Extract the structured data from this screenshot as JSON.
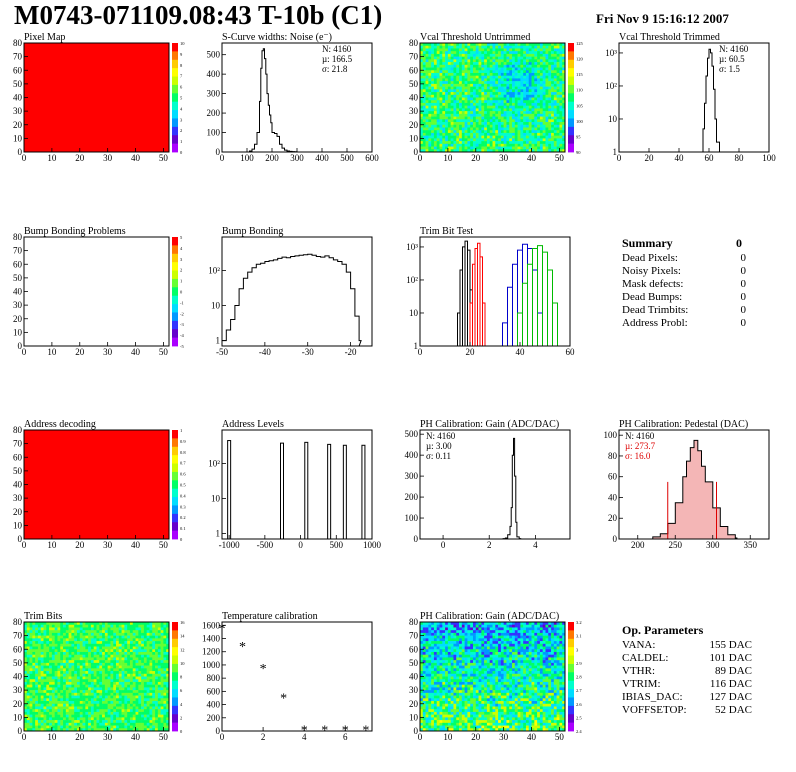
{
  "header": {
    "title": "M0743-071109.08:43 T-10b (C1)",
    "date": "Fri Nov  9 15:16:12 2007"
  },
  "summary": {
    "title": "Summary",
    "total": "0",
    "rows": [
      {
        "label": "Dead Pixels:",
        "value": "0"
      },
      {
        "label": "Noisy Pixels:",
        "value": "0"
      },
      {
        "label": "Mask defects:",
        "value": "0"
      },
      {
        "label": "Dead Bumps:",
        "value": "0"
      },
      {
        "label": "Dead Trimbits:",
        "value": "0"
      },
      {
        "label": "Address Probl:",
        "value": "0"
      }
    ]
  },
  "op_params": {
    "title": "Op. Parameters",
    "rows": [
      {
        "label": "VANA:",
        "value": "155 DAC"
      },
      {
        "label": "CALDEL:",
        "value": "101 DAC"
      },
      {
        "label": "VTHR:",
        "value": "89 DAC"
      },
      {
        "label": "VTRIM:",
        "value": "116 DAC"
      },
      {
        "label": "IBIAS_DAC:",
        "value": "127 DAC"
      },
      {
        "label": "VOFFSETOP:",
        "value": "52 DAC"
      }
    ]
  },
  "chart_data": [
    {
      "id": "pixel-map",
      "type": "heatmap",
      "title": "Pixel Map",
      "fill": "uniform",
      "color": "#ff0000",
      "xlim": [
        0,
        52
      ],
      "ylim": [
        0,
        80
      ],
      "xticks": [
        0,
        10,
        20,
        30,
        40,
        50
      ],
      "yticks": [
        0,
        10,
        20,
        30,
        40,
        50,
        60,
        70,
        80
      ],
      "colorbar": [
        "0",
        "1",
        "2",
        "3",
        "4",
        "5",
        "6",
        "7",
        "8",
        "9",
        "10"
      ]
    },
    {
      "id": "scurve",
      "type": "bar",
      "title": "S-Curve widths: Noise (e⁻)",
      "xlim": [
        0,
        600
      ],
      "ylim": [
        0,
        560
      ],
      "xticks": [
        0,
        100,
        200,
        300,
        400,
        500,
        600
      ],
      "yticks": [
        0,
        100,
        200,
        300,
        400,
        500
      ],
      "x": [
        100,
        110,
        120,
        130,
        140,
        150,
        155,
        160,
        165,
        170,
        175,
        180,
        185,
        190,
        195,
        200,
        210,
        220,
        230,
        240,
        250,
        260,
        270,
        280,
        290,
        300
      ],
      "values": [
        0,
        5,
        15,
        40,
        100,
        260,
        430,
        520,
        530,
        480,
        400,
        300,
        240,
        190,
        150,
        100,
        95,
        80,
        40,
        20,
        10,
        5,
        3,
        2,
        1,
        0
      ],
      "stats": [
        "N: 4160",
        "µ: 166.5",
        "σ: 21.8"
      ]
    },
    {
      "id": "vcal-untrimmed",
      "type": "heatmap",
      "title": "Vcal Threshold Untrimmed",
      "fill": "noise",
      "xlim": [
        0,
        52
      ],
      "ylim": [
        0,
        80
      ],
      "xticks": [
        0,
        10,
        20,
        30,
        40,
        50
      ],
      "yticks": [
        0,
        10,
        20,
        30,
        40,
        50,
        60,
        70,
        80
      ],
      "colorbar": [
        "90",
        "95",
        "100",
        "105",
        "110",
        "115",
        "120",
        "125"
      ]
    },
    {
      "id": "vcal-trimmed",
      "type": "bar",
      "title": "Vcal Threshold Trimmed",
      "log": true,
      "xlim": [
        0,
        100
      ],
      "ylim": [
        1,
        2000
      ],
      "xticks": [
        0,
        20,
        40,
        60,
        80,
        100
      ],
      "yticklabels": [
        "1",
        "10",
        "10²",
        "10³"
      ],
      "x": [
        54,
        56,
        57,
        58,
        59,
        60,
        61,
        62,
        63,
        64,
        65,
        67
      ],
      "values": [
        1,
        5,
        30,
        200,
        700,
        1300,
        1000,
        400,
        80,
        10,
        2,
        1
      ],
      "stats": [
        "N: 4160",
        "µ: 60.5",
        "σ: 1.5"
      ]
    },
    {
      "id": "bump-problems",
      "type": "heatmap",
      "title": "Bump Bonding Problems",
      "fill": "none",
      "xlim": [
        0,
        52
      ],
      "ylim": [
        0,
        80
      ],
      "xticks": [
        0,
        10,
        20,
        30,
        40,
        50
      ],
      "yticks": [
        0,
        10,
        20,
        30,
        40,
        50,
        60,
        70,
        80
      ],
      "colorbar": [
        "-5",
        "-4",
        "-3",
        "-2",
        "-1",
        "0",
        "1",
        "2",
        "3",
        "4",
        "5"
      ]
    },
    {
      "id": "bump-bonding",
      "type": "bar",
      "title": "Bump Bonding",
      "log": true,
      "xlim": [
        -50,
        -15
      ],
      "ylim": [
        0.7,
        900
      ],
      "xticks": [
        -50,
        -40,
        -30,
        -20
      ],
      "yticklabels": [
        "1",
        "10",
        "10²"
      ],
      "x": [
        -50,
        -49,
        -48,
        -47,
        -46,
        -45,
        -44,
        -43,
        -42,
        -41,
        -40,
        -39,
        -38,
        -37,
        -36,
        -35,
        -34,
        -33,
        -32,
        -31,
        -30,
        -29,
        -28,
        -27,
        -26,
        -25,
        -24,
        -23,
        -22,
        -21,
        -20,
        -19,
        -18
      ],
      "values": [
        1,
        2,
        4,
        10,
        30,
        60,
        90,
        120,
        150,
        160,
        180,
        190,
        200,
        220,
        240,
        230,
        250,
        260,
        270,
        280,
        290,
        270,
        250,
        240,
        260,
        230,
        200,
        180,
        150,
        90,
        30,
        5,
        1
      ]
    },
    {
      "id": "trim-bit-test",
      "type": "line",
      "title": "Trim Bit Test",
      "log": true,
      "xlim": [
        0,
        60
      ],
      "ylim": [
        1,
        2000
      ],
      "xticks": [
        0,
        20,
        40,
        60
      ],
      "yticklabels": [
        "1",
        "10",
        "10²",
        "10³"
      ],
      "series": [
        {
          "color": "#000000",
          "x": [
            14,
            15,
            16,
            17,
            18,
            19,
            20,
            21
          ],
          "values": [
            1,
            10,
            200,
            1000,
            1500,
            800,
            50,
            1
          ]
        },
        {
          "color": "#ff0000",
          "x": [
            19,
            20,
            21,
            22,
            23,
            24,
            25,
            26
          ],
          "values": [
            1,
            20,
            300,
            900,
            1300,
            500,
            20,
            1
          ]
        },
        {
          "color": "#0000cc",
          "x": [
            31,
            33,
            35,
            37,
            39,
            41,
            43,
            45,
            47,
            49
          ],
          "values": [
            1,
            5,
            60,
            300,
            800,
            1200,
            900,
            200,
            10,
            1
          ]
        },
        {
          "color": "#00bb00",
          "x": [
            37,
            39,
            41,
            43,
            45,
            47,
            49,
            51,
            53,
            55
          ],
          "values": [
            1,
            10,
            80,
            300,
            900,
            1100,
            700,
            200,
            20,
            1
          ]
        }
      ]
    },
    {
      "id": "address-decoding",
      "type": "heatmap",
      "title": "Address decoding",
      "fill": "uniform",
      "color": "#ff0000",
      "xlim": [
        0,
        52
      ],
      "ylim": [
        0,
        80
      ],
      "xticks": [
        0,
        10,
        20,
        30,
        40,
        50
      ],
      "yticks": [
        0,
        10,
        20,
        30,
        40,
        50,
        60,
        70,
        80
      ],
      "colorbar": [
        "0",
        "0.1",
        "0.2",
        "0.3",
        "0.4",
        "0.5",
        "0.6",
        "0.7",
        "0.8",
        "0.9",
        "1"
      ]
    },
    {
      "id": "address-levels",
      "type": "bar",
      "title": "Address Levels",
      "log": true,
      "xlim": [
        -1100,
        1000
      ],
      "ylim": [
        0.7,
        900
      ],
      "xticks": [
        -1000,
        -500,
        0,
        500,
        1000
      ],
      "yticklabels": [
        "1",
        "10",
        "10²"
      ],
      "x": [
        -1000,
        -260,
        80,
        400,
        620,
        880
      ],
      "values": [
        450,
        380,
        400,
        350,
        330,
        330
      ]
    },
    {
      "id": "ph-gain",
      "type": "bar",
      "title": "PH Calibration: Gain (ADC/DAC)",
      "xlim": [
        -1,
        5.5
      ],
      "ylim": [
        0,
        520
      ],
      "xticks": [
        0,
        2,
        4
      ],
      "yticks": [
        0,
        100,
        200,
        300,
        400,
        500
      ],
      "x": [
        2.6,
        2.7,
        2.8,
        2.9,
        2.95,
        3.0,
        3.05,
        3.1,
        3.15,
        3.2,
        3.3
      ],
      "values": [
        2,
        5,
        20,
        60,
        150,
        400,
        480,
        300,
        80,
        10,
        2
      ],
      "stats": [
        "N: 4160",
        "µ: 3.00",
        "σ: 0.11"
      ]
    },
    {
      "id": "ph-pedestal",
      "type": "bar",
      "title": "PH Calibration: Pedestal (DAC)",
      "xlim": [
        175,
        375
      ],
      "ylim": [
        0,
        105
      ],
      "xticks": [
        200,
        250,
        300,
        350
      ],
      "yticks": [
        0,
        20,
        40,
        60,
        80,
        100
      ],
      "x": [
        220,
        230,
        240,
        250,
        260,
        265,
        270,
        275,
        280,
        285,
        290,
        300,
        310,
        320,
        330
      ],
      "values": [
        2,
        5,
        15,
        35,
        60,
        75,
        88,
        95,
        85,
        70,
        55,
        30,
        12,
        4,
        1
      ],
      "stats": [
        "N: 4160",
        "µ: 273.7",
        "σ: 16.0"
      ]
    },
    {
      "id": "trim-bits",
      "type": "heatmap",
      "title": "Trim Bits",
      "fill": "noise2",
      "xlim": [
        0,
        52
      ],
      "ylim": [
        0,
        80
      ],
      "xticks": [
        0,
        10,
        20,
        30,
        40,
        50
      ],
      "yticks": [
        0,
        10,
        20,
        30,
        40,
        50,
        60,
        70,
        80
      ],
      "colorbar": [
        "0",
        "2",
        "4",
        "6",
        "8",
        "10",
        "12",
        "14",
        "16"
      ]
    },
    {
      "id": "temperature",
      "type": "scatter",
      "title": "Temperature calibration",
      "xlim": [
        0,
        7.3
      ],
      "ylim": [
        0,
        1650
      ],
      "xticks": [
        0,
        2,
        4,
        6
      ],
      "yticks": [
        0,
        200,
        400,
        600,
        800,
        1000,
        1200,
        1400,
        1600
      ],
      "x": [
        0,
        1,
        2,
        3,
        4,
        5,
        6,
        7
      ],
      "values": [
        1560,
        1290,
        950,
        510,
        25,
        25,
        25,
        25
      ]
    },
    {
      "id": "ph-gain-map",
      "type": "heatmap",
      "title": "PH Calibration: Gain (ADC/DAC)",
      "fill": "noise3",
      "xlim": [
        0,
        52
      ],
      "ylim": [
        0,
        80
      ],
      "xticks": [
        0,
        10,
        20,
        30,
        40,
        50
      ],
      "yticks": [
        0,
        10,
        20,
        30,
        40,
        50,
        60,
        70,
        80
      ],
      "colorbar": [
        "2.4",
        "2.5",
        "2.6",
        "2.7",
        "2.8",
        "2.9",
        "3",
        "3.1",
        "3.2"
      ]
    }
  ]
}
